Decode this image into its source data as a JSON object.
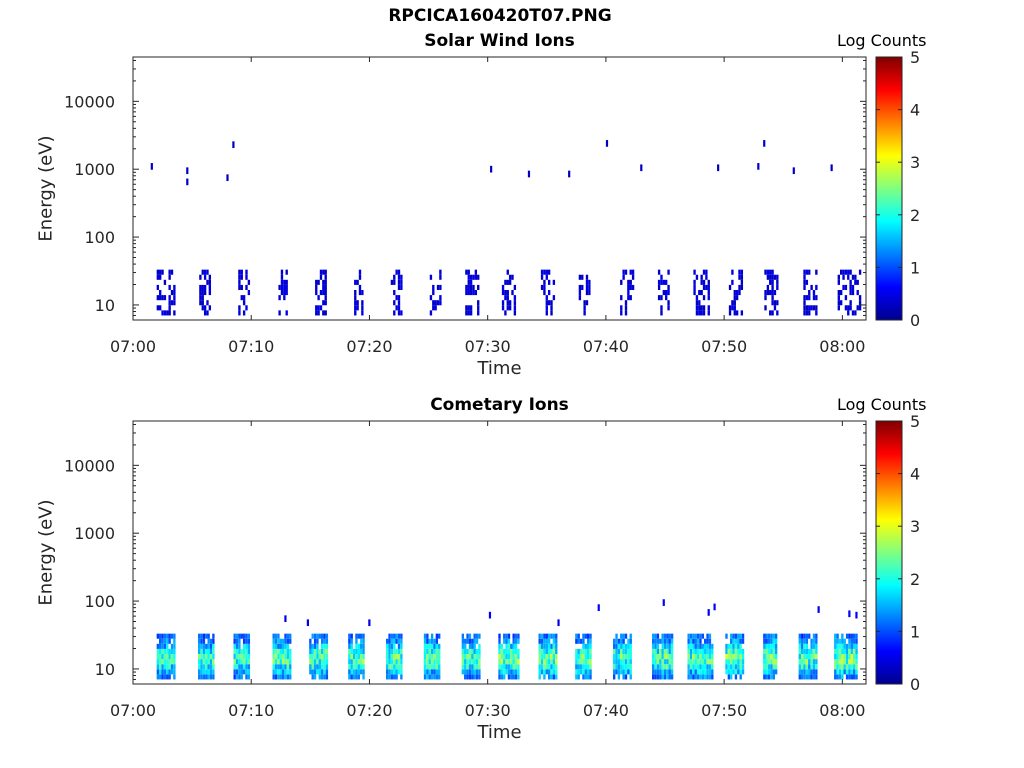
{
  "page": {
    "main_title": "RPCICA160420T07.PNG"
  },
  "panels": [
    {
      "title": "Solar Wind Ions",
      "xlabel": "Time",
      "ylabel": "Energy (eV)",
      "colorbar_title": "Log Counts"
    },
    {
      "title": "Cometary Ions",
      "xlabel": "Time",
      "ylabel": "Energy (eV)",
      "colorbar_title": "Log Counts"
    }
  ],
  "colors": {
    "colormap": [
      "#00008f",
      "#0000ff",
      "#0080ff",
      "#00ffff",
      "#80ff80",
      "#ffff00",
      "#ff8000",
      "#ff0000",
      "#800000"
    ]
  },
  "chart_data": [
    {
      "type": "heatmap",
      "title": "Solar Wind Ions",
      "xlabel": "Time",
      "ylabel": "Energy (eV)",
      "y_scale": "log",
      "xlim": [
        "07:00",
        "08:02"
      ],
      "ylim": [
        6,
        45000
      ],
      "x_ticks": [
        "07:00",
        "07:10",
        "07:20",
        "07:30",
        "07:40",
        "07:50",
        "08:00"
      ],
      "y_ticks": [
        "10",
        "100",
        "1000",
        "10000"
      ],
      "colorbar": {
        "label": "Log Counts",
        "range": [
          0,
          5
        ],
        "ticks": [
          "0",
          "1",
          "2",
          "3",
          "4",
          "5"
        ]
      },
      "cells": [
        {
          "t": 1.5,
          "e": 1100,
          "v": 0.3
        },
        {
          "t": 4.5,
          "e": 950,
          "v": 0.3
        },
        {
          "t": 4.5,
          "e": 650,
          "v": 0.3
        },
        {
          "t": 7.9,
          "e": 750,
          "v": 0.3
        },
        {
          "t": 8.4,
          "e": 2300,
          "v": 0.3
        },
        {
          "t": 30.2,
          "e": 1000,
          "v": 0.3
        },
        {
          "t": 33.4,
          "e": 850,
          "v": 0.3
        },
        {
          "t": 36.8,
          "e": 850,
          "v": 0.3
        },
        {
          "t": 40.0,
          "e": 2400,
          "v": 0.3
        },
        {
          "t": 42.9,
          "e": 1050,
          "v": 0.3
        },
        {
          "t": 49.4,
          "e": 1050,
          "v": 0.3
        },
        {
          "t": 52.8,
          "e": 1100,
          "v": 0.3
        },
        {
          "t": 53.3,
          "e": 2400,
          "v": 0.3
        },
        {
          "t": 55.8,
          "e": 950,
          "v": 0.3
        },
        {
          "t": 59.0,
          "e": 1050,
          "v": 0.3
        }
      ],
      "bursts": [
        {
          "t0": 2.0,
          "t1": 3.6,
          "v": 0.4
        },
        {
          "t0": 5.6,
          "t1": 6.6,
          "v": 0.4
        },
        {
          "t0": 8.9,
          "t1": 9.9,
          "v": 0.4
        },
        {
          "t0": 12.3,
          "t1": 13.1,
          "v": 0.4
        },
        {
          "t0": 15.4,
          "t1": 16.3,
          "v": 0.4
        },
        {
          "t0": 18.7,
          "t1": 19.5,
          "v": 0.4
        },
        {
          "t0": 21.8,
          "t1": 22.8,
          "v": 0.4
        },
        {
          "t0": 25.1,
          "t1": 26.0,
          "v": 0.4
        },
        {
          "t0": 28.1,
          "t1": 29.2,
          "v": 0.4
        },
        {
          "t0": 31.2,
          "t1": 32.3,
          "v": 0.4
        },
        {
          "t0": 34.5,
          "t1": 35.6,
          "v": 0.4
        },
        {
          "t0": 37.7,
          "t1": 38.6,
          "v": 0.4
        },
        {
          "t0": 41.2,
          "t1": 42.3,
          "v": 0.4
        },
        {
          "t0": 44.4,
          "t1": 45.3,
          "v": 0.4
        },
        {
          "t0": 47.4,
          "t1": 48.8,
          "v": 0.4
        },
        {
          "t0": 50.4,
          "t1": 51.5,
          "v": 0.4
        },
        {
          "t0": 53.4,
          "t1": 54.6,
          "v": 0.4
        },
        {
          "t0": 56.7,
          "t1": 57.8,
          "v": 0.4
        },
        {
          "t0": 59.6,
          "t1": 61.5,
          "v": 0.4
        }
      ]
    },
    {
      "type": "heatmap",
      "title": "Cometary Ions",
      "xlabel": "Time",
      "ylabel": "Energy (eV)",
      "y_scale": "log",
      "xlim": [
        "07:00",
        "08:02"
      ],
      "ylim": [
        6,
        45000
      ],
      "x_ticks": [
        "07:00",
        "07:10",
        "07:20",
        "07:30",
        "07:40",
        "07:50",
        "08:00"
      ],
      "y_ticks": [
        "10",
        "100",
        "1000",
        "10000"
      ],
      "colorbar": {
        "label": "Log Counts",
        "range": [
          0,
          5
        ],
        "ticks": [
          "0",
          "1",
          "2",
          "3",
          "4",
          "5"
        ]
      },
      "cells": [
        {
          "t": 12.8,
          "e": 55,
          "v": 0.5
        },
        {
          "t": 14.7,
          "e": 48,
          "v": 0.5
        },
        {
          "t": 19.9,
          "e": 48,
          "v": 0.5
        },
        {
          "t": 30.1,
          "e": 62,
          "v": 0.6
        },
        {
          "t": 35.9,
          "e": 48,
          "v": 0.5
        },
        {
          "t": 39.3,
          "e": 80,
          "v": 0.6
        },
        {
          "t": 44.8,
          "e": 95,
          "v": 0.6
        },
        {
          "t": 48.6,
          "e": 68,
          "v": 0.5
        },
        {
          "t": 49.1,
          "e": 82,
          "v": 0.6
        },
        {
          "t": 57.9,
          "e": 75,
          "v": 0.5
        },
        {
          "t": 60.5,
          "e": 65,
          "v": 0.6
        },
        {
          "t": 61.1,
          "e": 62,
          "v": 0.6
        }
      ],
      "bursts": [
        {
          "t0": 2.0,
          "t1": 3.6,
          "v": 1.6
        },
        {
          "t0": 5.5,
          "t1": 6.8,
          "v": 1.6
        },
        {
          "t0": 8.5,
          "t1": 9.8,
          "v": 1.6
        },
        {
          "t0": 11.8,
          "t1": 13.3,
          "v": 1.7
        },
        {
          "t0": 14.9,
          "t1": 16.4,
          "v": 1.7
        },
        {
          "t0": 18.2,
          "t1": 19.5,
          "v": 1.7
        },
        {
          "t0": 21.4,
          "t1": 22.8,
          "v": 1.7
        },
        {
          "t0": 24.6,
          "t1": 26.0,
          "v": 1.7
        },
        {
          "t0": 27.8,
          "t1": 29.3,
          "v": 1.7
        },
        {
          "t0": 30.9,
          "t1": 32.6,
          "v": 1.8
        },
        {
          "t0": 34.3,
          "t1": 35.8,
          "v": 1.8
        },
        {
          "t0": 37.4,
          "t1": 38.8,
          "v": 1.7
        },
        {
          "t0": 40.6,
          "t1": 42.2,
          "v": 1.7
        },
        {
          "t0": 43.9,
          "t1": 45.6,
          "v": 1.7
        },
        {
          "t0": 46.9,
          "t1": 49.0,
          "v": 1.7
        },
        {
          "t0": 50.1,
          "t1": 51.7,
          "v": 1.8
        },
        {
          "t0": 53.3,
          "t1": 54.5,
          "v": 1.8
        },
        {
          "t0": 56.3,
          "t1": 57.8,
          "v": 1.7
        },
        {
          "t0": 59.3,
          "t1": 61.3,
          "v": 1.8
        }
      ]
    }
  ]
}
